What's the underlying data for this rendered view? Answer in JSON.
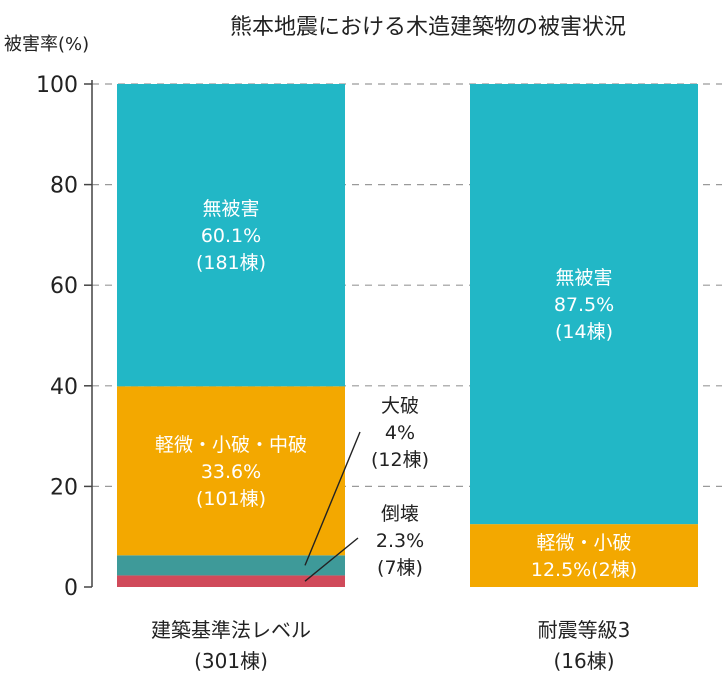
{
  "chart_data": {
    "type": "bar",
    "stacked": true,
    "title": "熊本地震における木造建築物の被害状況",
    "ylabel": "被害率(%)",
    "xlabel": "",
    "ylim": [
      0,
      100
    ],
    "yticks": [
      "0",
      "20",
      "40",
      "60",
      "80",
      "100"
    ],
    "grid": true,
    "categories": [
      {
        "label": "建築基準法レベル",
        "sub": "(301棟)"
      },
      {
        "label": "耐震等級3",
        "sub": "(16棟)"
      }
    ],
    "series": [
      {
        "key": "collapse",
        "color": "#d04a5a",
        "values": [
          2.3,
          0
        ],
        "labels": [
          {
            "placement": "outside",
            "lines": [
              "倒壊",
              "2.3%",
              "(7棟)"
            ]
          },
          null
        ]
      },
      {
        "key": "major",
        "color": "#3e9a99",
        "values": [
          4.0,
          0
        ],
        "labels": [
          {
            "placement": "outside",
            "lines": [
              "大破",
              "4%",
              "(12棟)"
            ]
          },
          null
        ]
      },
      {
        "key": "minor",
        "color": "#f3a800",
        "values": [
          33.6,
          12.5
        ],
        "labels": [
          {
            "placement": "inside",
            "lines": [
              "軽微・小破・中破",
              "33.6%",
              "(101棟)"
            ]
          },
          {
            "placement": "inside",
            "lines": [
              "軽微・小破",
              "12.5%(2棟)"
            ]
          }
        ]
      },
      {
        "key": "none",
        "color": "#22b7c6",
        "values": [
          60.1,
          87.5
        ],
        "labels": [
          {
            "placement": "inside",
            "lines": [
              "無被害",
              "60.1%",
              "(181棟)"
            ]
          },
          {
            "placement": "inside",
            "lines": [
              "無被害",
              "87.5%",
              "(14棟)"
            ]
          }
        ]
      }
    ]
  }
}
